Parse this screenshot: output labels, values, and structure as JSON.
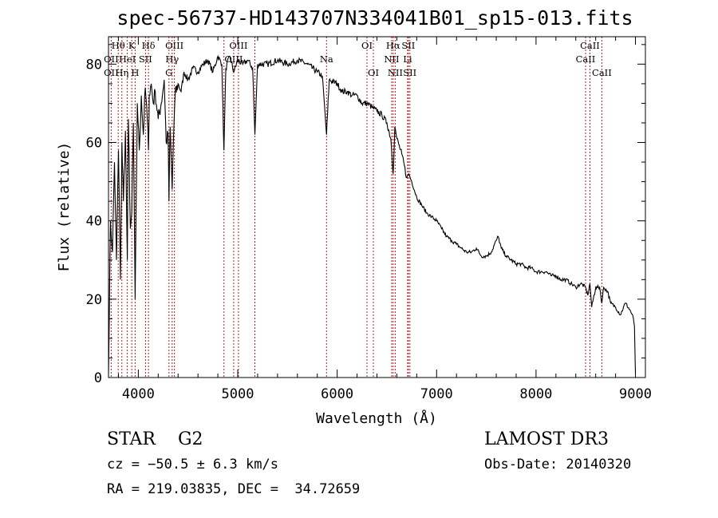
{
  "page": {
    "title": "spec-56737-HD143707N334041B01_sp15-013.fits",
    "object_type": "STAR    G2",
    "survey": "LAMOST DR3",
    "redshift": "cz = −50.5 ± 6.3 km/s",
    "obs_date": "Obs-Date: 20140320",
    "coords": "RA = 219.03835, DEC =  34.72659"
  },
  "chart_data": {
    "type": "line",
    "title": "spec-56737-HD143707N334041B01_sp15-013.fits",
    "xlabel": "Wavelength (Å)",
    "ylabel": "Flux (relative)",
    "xlim": [
      3700,
      9100
    ],
    "ylim": [
      0,
      87
    ],
    "xticks": [
      4000,
      5000,
      6000,
      7000,
      8000,
      9000
    ],
    "yticks": [
      0,
      20,
      40,
      60,
      80
    ],
    "grid": false,
    "colors": {
      "spectrum": "#000000",
      "lines": "#b22222",
      "axes": "#000000"
    },
    "series": [
      {
        "name": "Flux",
        "x": [
          3700,
          3720,
          3740,
          3760,
          3780,
          3800,
          3820,
          3835,
          3850,
          3870,
          3889,
          3900,
          3920,
          3934,
          3950,
          3968,
          3990,
          4010,
          4030,
          4050,
          4070,
          4090,
          4102,
          4110,
          4130,
          4150,
          4170,
          4200,
          4230,
          4260,
          4280,
          4300,
          4308,
          4320,
          4340,
          4352,
          4370,
          4400,
          4430,
          4460,
          4500,
          4550,
          4600,
          4650,
          4700,
          4750,
          4800,
          4840,
          4861,
          4880,
          4920,
          4960,
          5000,
          5050,
          5100,
          5150,
          5172,
          5200,
          5300,
          5400,
          5500,
          5600,
          5700,
          5800,
          5850,
          5893,
          5920,
          6000,
          6050,
          6100,
          6150,
          6200,
          6250,
          6300,
          6350,
          6400,
          6450,
          6500,
          6540,
          6563,
          6580,
          6600,
          6650,
          6700,
          6720,
          6750,
          6800,
          6850,
          6900,
          6950,
          7000,
          7050,
          7100,
          7150,
          7200,
          7250,
          7300,
          7350,
          7400,
          7450,
          7500,
          7550,
          7600,
          7620,
          7650,
          7700,
          7750,
          7800,
          7850,
          7900,
          7950,
          8000,
          8050,
          8100,
          8150,
          8200,
          8250,
          8300,
          8350,
          8400,
          8450,
          8498,
          8520,
          8542,
          8560,
          8600,
          8640,
          8662,
          8680,
          8720,
          8750,
          8800,
          8850,
          8880,
          8900,
          8950,
          8980,
          8990,
          9000
        ],
        "values": [
          1,
          40,
          32,
          55,
          30,
          58,
          25,
          60,
          45,
          63,
          30,
          66,
          38,
          42,
          65,
          20,
          70,
          58,
          72,
          62,
          74,
          66,
          58,
          72,
          75,
          70,
          73,
          66,
          70,
          76,
          60,
          62,
          45,
          64,
          48,
          60,
          72,
          75,
          73,
          78,
          76,
          79,
          78,
          80,
          81,
          78,
          82,
          80,
          58,
          79,
          82,
          78,
          81,
          80,
          81,
          79,
          62,
          80,
          80,
          81,
          80,
          81,
          80,
          78,
          77,
          62,
          76,
          75,
          73,
          73,
          72,
          72,
          70,
          70,
          69,
          68,
          67,
          65,
          61,
          52,
          64,
          61,
          57,
          51,
          52,
          50,
          46,
          44,
          42,
          41,
          40,
          38,
          36,
          35,
          34,
          33,
          32,
          32,
          33,
          31,
          31,
          32,
          35,
          36,
          33,
          31,
          30,
          29,
          29,
          28,
          28,
          27,
          27,
          27,
          26,
          26,
          25,
          25,
          24,
          23,
          24,
          23,
          21,
          24,
          18,
          23,
          23,
          19,
          23,
          22,
          19,
          18,
          16,
          18,
          19,
          17,
          15,
          13,
          1
        ]
      }
    ],
    "spectral_lines": [
      {
        "label": "Hθ",
        "x": 3798,
        "row": 0
      },
      {
        "label": "OII",
        "x": 3727,
        "row": 1
      },
      {
        "label": "OII",
        "x": 3727,
        "row": 2
      },
      {
        "label": "Hη",
        "x": 3835,
        "row": 2
      },
      {
        "label": "HeI",
        "x": 3889,
        "row": 1
      },
      {
        "label": "K",
        "x": 3934,
        "row": 0
      },
      {
        "label": "H",
        "x": 3968,
        "row": 2
      },
      {
        "label": "SII",
        "x": 4072,
        "row": 1
      },
      {
        "label": "Hδ",
        "x": 4102,
        "row": 0
      },
      {
        "label": "OIII",
        "x": 4363,
        "row": 0
      },
      {
        "label": "Hγ",
        "x": 4340,
        "row": 1
      },
      {
        "label": "G",
        "x": 4308,
        "row": 2
      },
      {
        "label": "OIII",
        "x": 5007,
        "row": 0
      },
      {
        "label": "OIII",
        "x": 4959,
        "row": 1
      },
      {
        "label": "Na",
        "x": 5893,
        "row": 1
      },
      {
        "label": "OI",
        "x": 6300,
        "row": 0
      },
      {
        "label": "OI",
        "x": 6364,
        "row": 2
      },
      {
        "label": "Hα",
        "x": 6563,
        "row": 0
      },
      {
        "label": "SII",
        "x": 6716,
        "row": 0
      },
      {
        "label": "NII",
        "x": 6548,
        "row": 1
      },
      {
        "label": "Li",
        "x": 6708,
        "row": 1
      },
      {
        "label": "NII",
        "x": 6584,
        "row": 2
      },
      {
        "label": "SII",
        "x": 6731,
        "row": 2
      },
      {
        "label": "CaII",
        "x": 8542,
        "row": 0
      },
      {
        "label": "CaII",
        "x": 8498,
        "row": 1
      },
      {
        "label": "CaII",
        "x": 8662,
        "row": 2
      }
    ],
    "line_markers": [
      3727,
      3798,
      3835,
      3889,
      3934,
      3968,
      4072,
      4102,
      4308,
      4340,
      4363,
      4861,
      4959,
      5007,
      5172,
      5893,
      6300,
      6364,
      6548,
      6563,
      6584,
      6708,
      6716,
      6731,
      8498,
      8542,
      8662
    ]
  }
}
